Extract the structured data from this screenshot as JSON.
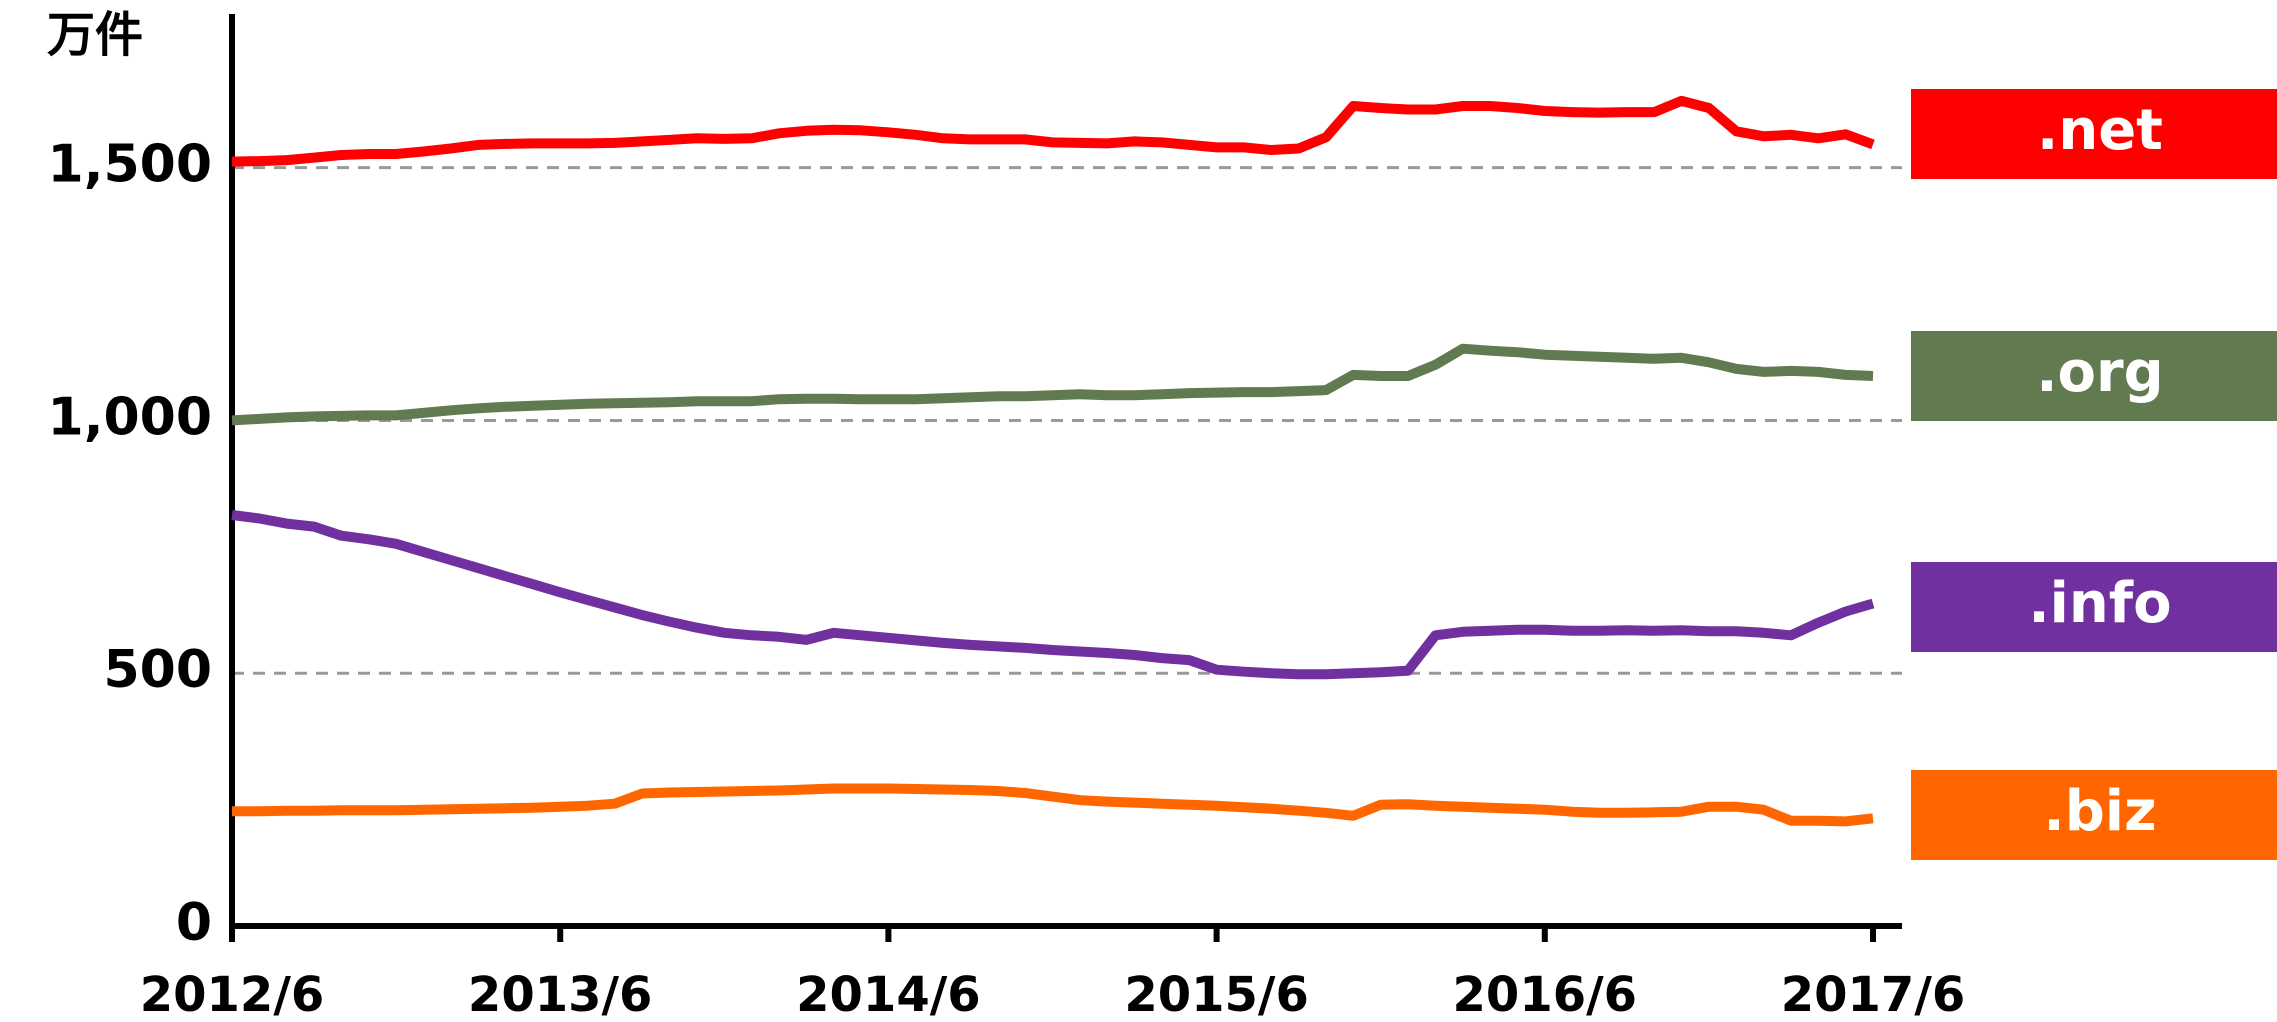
{
  "chart_data": {
    "type": "line",
    "y_label": "万件",
    "categories": [
      "2012/6",
      null,
      null,
      null,
      null,
      null,
      null,
      null,
      null,
      null,
      null,
      null,
      "2013/6",
      null,
      null,
      null,
      null,
      null,
      null,
      null,
      null,
      null,
      null,
      null,
      "2014/6",
      null,
      null,
      null,
      null,
      null,
      null,
      null,
      null,
      null,
      null,
      null,
      "2015/6",
      null,
      null,
      null,
      null,
      null,
      null,
      null,
      null,
      null,
      null,
      null,
      "2016/6",
      null,
      null,
      null,
      null,
      null,
      null,
      null,
      null,
      null,
      null,
      null,
      "2017/6"
    ],
    "ylim": [
      0,
      1800
    ],
    "yticks": [
      0,
      500,
      {
        "value": 1000,
        "label": "1,000"
      },
      {
        "value": 1500,
        "label": "1,500"
      }
    ],
    "grid": true,
    "series": [
      {
        "name": ".net",
        "color": "#ff0000",
        "values": [
          1512,
          1513,
          1515,
          1520,
          1525,
          1527,
          1527,
          1532,
          1538,
          1545,
          1547,
          1548,
          1548,
          1548,
          1549,
          1552,
          1555,
          1558,
          1557,
          1558,
          1568,
          1573,
          1575,
          1574,
          1570,
          1565,
          1558,
          1556,
          1556,
          1556,
          1550,
          1549,
          1548,
          1552,
          1550,
          1545,
          1540,
          1540,
          1535,
          1538,
          1560,
          1622,
          1618,
          1615,
          1615,
          1622,
          1622,
          1618,
          1612,
          1610,
          1609,
          1610,
          1610,
          1632,
          1618,
          1572,
          1562,
          1565,
          1558,
          1566,
          1546
        ]
      },
      {
        "name": ".org",
        "color": "#627a50",
        "values": [
          1000,
          1003,
          1006,
          1008,
          1009,
          1010,
          1010,
          1015,
          1020,
          1024,
          1027,
          1029,
          1031,
          1033,
          1034,
          1035,
          1036,
          1038,
          1038,
          1038,
          1042,
          1043,
          1043,
          1042,
          1042,
          1042,
          1044,
          1046,
          1048,
          1048,
          1050,
          1052,
          1050,
          1050,
          1052,
          1054,
          1055,
          1056,
          1056,
          1058,
          1060,
          1090,
          1088,
          1088,
          1110,
          1142,
          1138,
          1135,
          1130,
          1128,
          1126,
          1124,
          1122,
          1124,
          1115,
          1102,
          1096,
          1098,
          1096,
          1090,
          1088
        ]
      },
      {
        "name": ".info",
        "color": "#7030a0",
        "values": [
          813,
          806,
          796,
          790,
          772,
          765,
          756,
          740,
          724,
          708,
          692,
          676,
          660,
          645,
          630,
          615,
          602,
          590,
          580,
          575,
          572,
          566,
          580,
          575,
          570,
          565,
          560,
          556,
          553,
          550,
          546,
          543,
          540,
          536,
          530,
          526,
          507,
          503,
          500,
          498,
          498,
          500,
          502,
          505,
          575,
          582,
          584,
          586,
          586,
          584,
          584,
          585,
          584,
          585,
          583,
          583,
          580,
          575,
          600,
          622,
          638
        ]
      },
      {
        "name": ".biz",
        "color": "#ff6600",
        "values": [
          227,
          227,
          228,
          228,
          229,
          229,
          229,
          230,
          231,
          232,
          233,
          234,
          236,
          238,
          242,
          262,
          264,
          265,
          266,
          267,
          268,
          270,
          272,
          272,
          272,
          271,
          270,
          269,
          267,
          263,
          256,
          249,
          246,
          244,
          242,
          240,
          238,
          235,
          232,
          228,
          224,
          218,
          240,
          241,
          238,
          236,
          234,
          232,
          230,
          226,
          224,
          224,
          225,
          226,
          236,
          236,
          230,
          208,
          208,
          207,
          213
        ]
      }
    ]
  }
}
